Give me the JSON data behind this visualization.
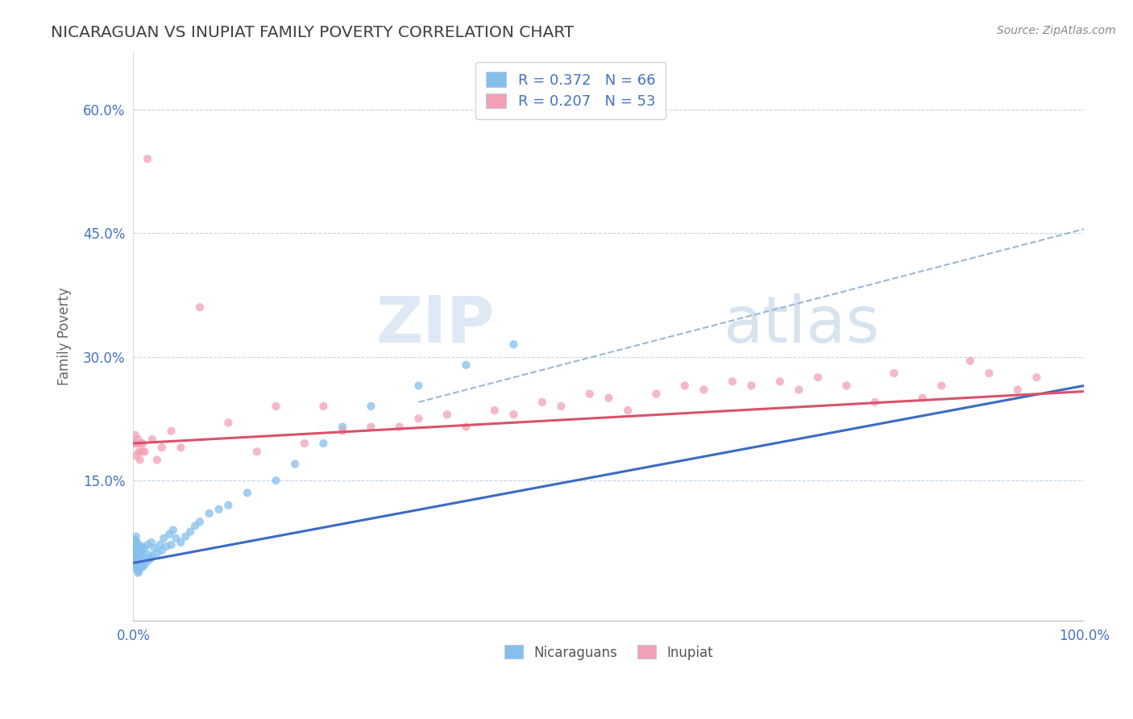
{
  "title": "NICARAGUAN VS INUPIAT FAMILY POVERTY CORRELATION CHART",
  "source_text": "Source: ZipAtlas.com",
  "ylabel": "Family Poverty",
  "xlim": [
    0.0,
    1.0
  ],
  "ylim": [
    -0.02,
    0.67
  ],
  "ytick_positions": [
    0.15,
    0.3,
    0.45,
    0.6
  ],
  "ytick_labels": [
    "15.0%",
    "30.0%",
    "45.0%",
    "60.0%"
  ],
  "blue_color": "#85BFEC",
  "pink_color": "#F2A0B5",
  "blue_line_color": "#3B6BC4",
  "pink_line_color": "#D9526A",
  "dashed_line_color": "#9BB8D4",
  "R_blue": 0.372,
  "N_blue": 66,
  "R_pink": 0.207,
  "N_pink": 53,
  "legend_color": "#4472C4",
  "watermark_zip": "ZIP",
  "watermark_atlas": "atlas",
  "background_color": "#FFFFFF",
  "grid_color": "#C8D4E4",
  "title_color": "#404040",
  "blue_x": [
    0.001,
    0.001,
    0.001,
    0.002,
    0.002,
    0.002,
    0.002,
    0.003,
    0.003,
    0.003,
    0.003,
    0.004,
    0.004,
    0.004,
    0.004,
    0.005,
    0.005,
    0.005,
    0.005,
    0.006,
    0.006,
    0.006,
    0.007,
    0.007,
    0.008,
    0.008,
    0.009,
    0.009,
    0.01,
    0.01,
    0.012,
    0.012,
    0.013,
    0.015,
    0.015,
    0.016,
    0.018,
    0.019,
    0.02,
    0.022,
    0.025,
    0.028,
    0.03,
    0.032,
    0.035,
    0.038,
    0.04,
    0.042,
    0.045,
    0.05,
    0.055,
    0.06,
    0.065,
    0.07,
    0.08,
    0.09,
    0.1,
    0.12,
    0.15,
    0.17,
    0.2,
    0.22,
    0.25,
    0.3,
    0.35,
    0.4
  ],
  "blue_y": [
    0.055,
    0.065,
    0.075,
    0.045,
    0.055,
    0.068,
    0.078,
    0.048,
    0.058,
    0.068,
    0.082,
    0.042,
    0.055,
    0.065,
    0.075,
    0.038,
    0.05,
    0.062,
    0.072,
    0.04,
    0.053,
    0.068,
    0.045,
    0.06,
    0.048,
    0.065,
    0.052,
    0.07,
    0.045,
    0.062,
    0.048,
    0.068,
    0.055,
    0.052,
    0.072,
    0.06,
    0.055,
    0.075,
    0.058,
    0.068,
    0.062,
    0.072,
    0.065,
    0.08,
    0.07,
    0.085,
    0.072,
    0.09,
    0.08,
    0.075,
    0.082,
    0.088,
    0.095,
    0.1,
    0.11,
    0.115,
    0.12,
    0.135,
    0.15,
    0.17,
    0.195,
    0.215,
    0.24,
    0.265,
    0.29,
    0.315
  ],
  "pink_x": [
    0.001,
    0.002,
    0.003,
    0.004,
    0.005,
    0.006,
    0.007,
    0.008,
    0.009,
    0.01,
    0.012,
    0.015,
    0.02,
    0.025,
    0.03,
    0.04,
    0.05,
    0.07,
    0.1,
    0.13,
    0.15,
    0.18,
    0.2,
    0.22,
    0.25,
    0.28,
    0.3,
    0.33,
    0.35,
    0.38,
    0.4,
    0.43,
    0.45,
    0.48,
    0.5,
    0.52,
    0.55,
    0.58,
    0.6,
    0.63,
    0.65,
    0.68,
    0.7,
    0.72,
    0.75,
    0.78,
    0.8,
    0.83,
    0.85,
    0.88,
    0.9,
    0.93,
    0.95
  ],
  "pink_y": [
    0.195,
    0.205,
    0.18,
    0.195,
    0.2,
    0.185,
    0.175,
    0.195,
    0.185,
    0.195,
    0.185,
    0.54,
    0.2,
    0.175,
    0.19,
    0.21,
    0.19,
    0.36,
    0.22,
    0.185,
    0.24,
    0.195,
    0.24,
    0.21,
    0.215,
    0.215,
    0.225,
    0.23,
    0.215,
    0.235,
    0.23,
    0.245,
    0.24,
    0.255,
    0.25,
    0.235,
    0.255,
    0.265,
    0.26,
    0.27,
    0.265,
    0.27,
    0.26,
    0.275,
    0.265,
    0.245,
    0.28,
    0.25,
    0.265,
    0.295,
    0.28,
    0.26,
    0.275
  ],
  "blue_line_x": [
    0.0,
    1.0
  ],
  "blue_line_y": [
    0.05,
    0.265
  ],
  "pink_line_x": [
    0.0,
    1.0
  ],
  "pink_line_y": [
    0.195,
    0.258
  ],
  "dash_line_x": [
    0.3,
    1.0
  ],
  "dash_line_y": [
    0.245,
    0.455
  ]
}
